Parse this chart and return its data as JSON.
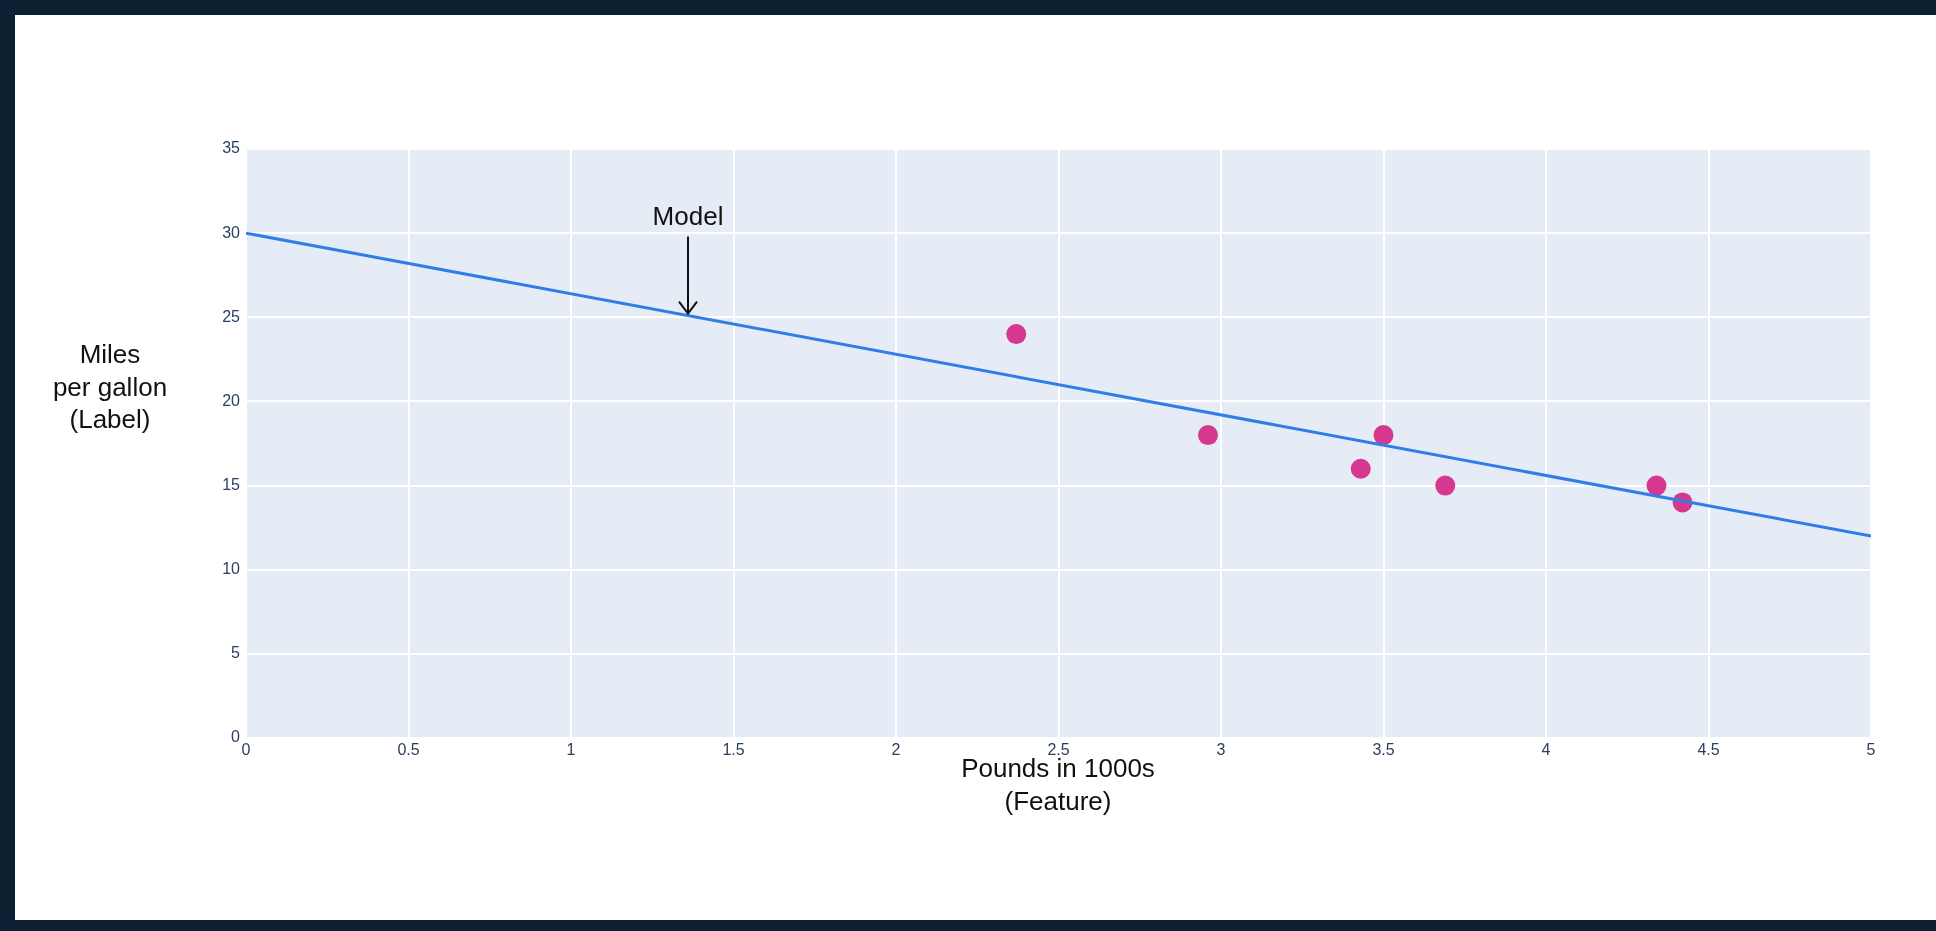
{
  "chart_data": {
    "type": "scatter",
    "xlabel": "Pounds in 1000s\n(Feature)",
    "ylabel": "Miles\nper gallon\n(Label)",
    "annotations": [
      {
        "text": "Model",
        "x": 1.36,
        "y": 25.1
      }
    ],
    "series": [
      {
        "type": "line",
        "x": [
          0,
          5
        ],
        "values": [
          30,
          12
        ],
        "color": "#2f7ee8",
        "marker": "none"
      },
      {
        "x": [
          2.37,
          2.96,
          3.43,
          3.5,
          3.69,
          4.34,
          4.42
        ],
        "values": [
          24,
          18,
          16,
          18,
          15,
          15,
          14
        ],
        "color": "#d6378f",
        "marker": "circle"
      }
    ],
    "xlim": [
      0,
      5
    ],
    "xticks": [
      0,
      0.5,
      1,
      1.5,
      2,
      2.5,
      3,
      3.5,
      4,
      4.5,
      5
    ],
    "ylim": [
      0,
      35
    ],
    "yticks": [
      0,
      5,
      10,
      15,
      20,
      25,
      30,
      35
    ],
    "grid": true
  }
}
